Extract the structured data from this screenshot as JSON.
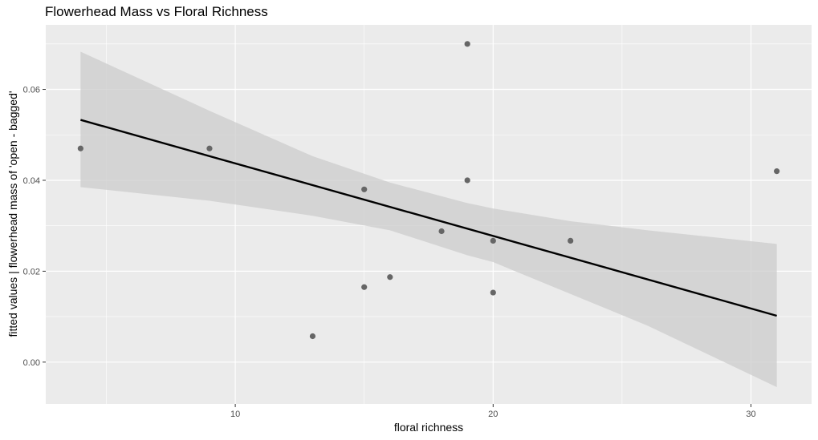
{
  "chart_data": {
    "type": "scatter",
    "title": "Flowerhead Mass vs Floral Richness",
    "xlabel": "floral richness",
    "ylabel": "fitted values | flowerhead mass of 'open - bagged'",
    "xlim": [
      2.65,
      32.35
    ],
    "ylim": [
      -0.0092,
      0.0742
    ],
    "x_ticks": [
      10,
      20,
      30
    ],
    "y_ticks": [
      0.0,
      0.02,
      0.04,
      0.06
    ],
    "x_tick_labels": [
      "10",
      "20",
      "30"
    ],
    "y_tick_labels": [
      "0.00",
      "0.02",
      "0.04",
      "0.06"
    ],
    "grid": true,
    "points": [
      {
        "x": 4,
        "y": 0.047
      },
      {
        "x": 9,
        "y": 0.047
      },
      {
        "x": 13,
        "y": 0.0057
      },
      {
        "x": 15,
        "y": 0.038
      },
      {
        "x": 15,
        "y": 0.0165
      },
      {
        "x": 16,
        "y": 0.0187
      },
      {
        "x": 18,
        "y": 0.0288
      },
      {
        "x": 19,
        "y": 0.07
      },
      {
        "x": 19,
        "y": 0.04
      },
      {
        "x": 20,
        "y": 0.0267
      },
      {
        "x": 20,
        "y": 0.0153
      },
      {
        "x": 23,
        "y": 0.0267
      },
      {
        "x": 31,
        "y": 0.042
      }
    ],
    "fit_line": {
      "x": [
        4,
        31
      ],
      "y": [
        0.0533,
        0.0102
      ]
    },
    "confidence_band": {
      "x": [
        4,
        9,
        13,
        16,
        19,
        20,
        23,
        26,
        31
      ],
      "upper": [
        0.0683,
        0.0553,
        0.0453,
        0.0395,
        0.035,
        0.0338,
        0.031,
        0.029,
        0.026
      ],
      "lower": [
        0.0385,
        0.0355,
        0.0322,
        0.029,
        0.0235,
        0.022,
        0.015,
        0.008,
        -0.0055
      ]
    },
    "colors": {
      "panel": "#ebebeb",
      "grid": "#ffffff",
      "point": "#666666",
      "line": "#000000",
      "band": "#cccccc"
    }
  }
}
